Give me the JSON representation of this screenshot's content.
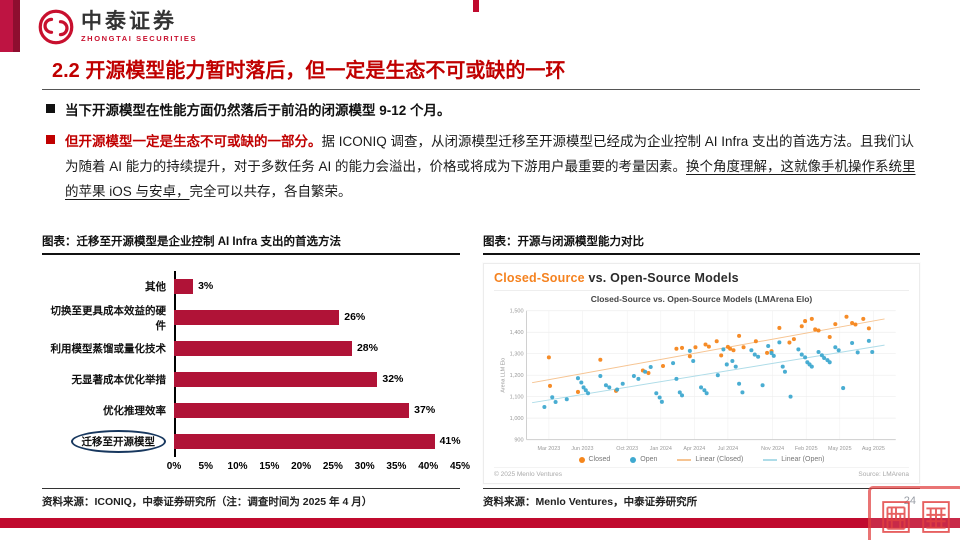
{
  "brand": {
    "name_cn": "中泰证券",
    "name_en": "ZHONGTAI SECURITIES"
  },
  "title": "2.2 开源模型能力暂时落后，但一定是生态不可或缺的一环",
  "bullets": {
    "b1": "当下开源模型在性能方面仍然落后于前沿的闭源模型 9-12 个月。",
    "b2_lead": "但开源模型一定是生态不可或缺的一部分。",
    "b2_body": "据 ICONIQ 调查，从闭源模型迁移至开源模型已经成为企业控制 AI Infra 支出的首选方法。且我们认为随着 AI 能力的持续提升，对于多数任务 AI 的能力会溢出，价格或将成为下游用户最重要的考量因素。",
    "b2_underlined": "换个角度理解，这就像手机操作系统里的苹果 iOS 与安卓，",
    "b2_tail": "完全可以共存，各自繁荣。"
  },
  "left_panel": {
    "header": "图表：迁移至开源模型是企业控制 AI Infra 支出的首选方法",
    "source": "资料来源：ICONIQ，中泰证券研究所（注：调查时间为 2025 年 4 月）"
  },
  "right_panel": {
    "header": "图表：开源与闭源模型能力对比",
    "card_title_orange": "Closed-Source",
    "card_title_rest": " vs. Open-Source Models",
    "copyright": "© 2025 Menlo Ventures",
    "chart_source": "Source: LMArena",
    "source": "资料来源：Menlo Ventures，中泰证券研究所"
  },
  "page_number": "24",
  "colors": {
    "crimson": "#B01337",
    "title_red": "#C00000",
    "closed_orange": "#F5861C",
    "open_blue": "#3FA9D0",
    "trend_orange": "#F6C492",
    "trend_blue": "#AEDCE8",
    "bottom_bar": "#C00A2E"
  },
  "chart_data": [
    {
      "type": "bar",
      "orientation": "horizontal",
      "title": "迁移至开源模型是企业控制 AI Infra 支出的首选方法",
      "categories": [
        "其他",
        "切换至更具成本效益的硬件",
        "利用模型蒸馏或量化技术",
        "无显著成本优化举措",
        "优化推理效率",
        "迁移至开源模型"
      ],
      "values": [
        3,
        26,
        28,
        32,
        37,
        41
      ],
      "value_labels": [
        "3%",
        "26%",
        "28%",
        "32%",
        "37%",
        "41%"
      ],
      "highlight": "迁移至开源模型",
      "xlabel": "",
      "ylabel": "",
      "xlim": [
        0,
        45
      ],
      "xticks": [
        "0%",
        "5%",
        "10%",
        "15%",
        "20%",
        "25%",
        "30%",
        "35%",
        "40%",
        "45%"
      ],
      "bar_color": "#B01337"
    },
    {
      "type": "scatter",
      "title": "Closed-Source vs. Open-Source Models (LMArena Elo)",
      "ylabel": "Arena LLM Elo",
      "ylim": [
        900,
        1500
      ],
      "x_domain": [
        0,
        33
      ],
      "yticks": [
        {
          "v": 900,
          "label": "900"
        },
        {
          "v": 1000,
          "label": "1,000"
        },
        {
          "v": 1100,
          "label": "1,100"
        },
        {
          "v": 1200,
          "label": "1,200"
        },
        {
          "v": 1300,
          "label": "1,300"
        },
        {
          "v": 1400,
          "label": "1,400"
        },
        {
          "v": 1500,
          "label": "1,500"
        }
      ],
      "xticks": [
        {
          "m": 2,
          "label": "Mar 2023"
        },
        {
          "m": 5,
          "label": "Jun 2023"
        },
        {
          "m": 9,
          "label": "Oct 2023"
        },
        {
          "m": 12,
          "label": "Jan 2024"
        },
        {
          "m": 15,
          "label": "Apr 2024"
        },
        {
          "m": 18,
          "label": "Jul 2024"
        },
        {
          "m": 22,
          "label": "Nov 2024"
        },
        {
          "m": 25,
          "label": "Feb 2025"
        },
        {
          "m": 28,
          "label": "May 2025"
        },
        {
          "m": 31,
          "label": "Aug 2025"
        }
      ],
      "series": [
        {
          "name": "Closed",
          "color": "#F5861C",
          "points": [
            [
              2,
              1283
            ],
            [
              2.1,
              1150
            ],
            [
              4.6,
              1122
            ],
            [
              6.6,
              1272
            ],
            [
              8,
              1127
            ],
            [
              10.4,
              1222
            ],
            [
              10.9,
              1210
            ],
            [
              12.2,
              1243
            ],
            [
              13.4,
              1323
            ],
            [
              13.9,
              1327
            ],
            [
              14.6,
              1288
            ],
            [
              15.1,
              1330
            ],
            [
              16,
              1343
            ],
            [
              16.3,
              1333
            ],
            [
              17,
              1358
            ],
            [
              17.4,
              1292
            ],
            [
              18,
              1332
            ],
            [
              18.2,
              1323
            ],
            [
              18.5,
              1316
            ],
            [
              19,
              1383
            ],
            [
              19.4,
              1330
            ],
            [
              20.5,
              1358
            ],
            [
              21.5,
              1304
            ],
            [
              21.9,
              1312
            ],
            [
              22.6,
              1420
            ],
            [
              23.5,
              1352
            ],
            [
              23.9,
              1368
            ],
            [
              24.6,
              1428
            ],
            [
              24.9,
              1452
            ],
            [
              25.5,
              1462
            ],
            [
              25.8,
              1413
            ],
            [
              26.1,
              1408
            ],
            [
              27.1,
              1378
            ],
            [
              27.6,
              1438
            ],
            [
              28.6,
              1472
            ],
            [
              29.1,
              1443
            ],
            [
              29.4,
              1436
            ],
            [
              30.1,
              1462
            ],
            [
              30.6,
              1418
            ]
          ]
        },
        {
          "name": "Open",
          "color": "#3FA9D0",
          "points": [
            [
              1.6,
              1052
            ],
            [
              2.3,
              1097
            ],
            [
              2.6,
              1075
            ],
            [
              3.6,
              1088
            ],
            [
              4.6,
              1186
            ],
            [
              4.9,
              1166
            ],
            [
              5.1,
              1143
            ],
            [
              5.3,
              1130
            ],
            [
              5.5,
              1116
            ],
            [
              6.6,
              1196
            ],
            [
              7.1,
              1153
            ],
            [
              7.4,
              1143
            ],
            [
              8.1,
              1133
            ],
            [
              8.6,
              1160
            ],
            [
              9.6,
              1196
            ],
            [
              10,
              1183
            ],
            [
              10.6,
              1216
            ],
            [
              11.1,
              1238
            ],
            [
              11.6,
              1116
            ],
            [
              11.9,
              1096
            ],
            [
              12.1,
              1076
            ],
            [
              13.1,
              1256
            ],
            [
              13.4,
              1183
            ],
            [
              13.7,
              1120
            ],
            [
              13.9,
              1106
            ],
            [
              14.6,
              1313
            ],
            [
              14.9,
              1266
            ],
            [
              15.6,
              1143
            ],
            [
              15.9,
              1130
            ],
            [
              16.1,
              1116
            ],
            [
              17.1,
              1200
            ],
            [
              17.6,
              1320
            ],
            [
              17.9,
              1250
            ],
            [
              18.4,
              1266
            ],
            [
              18.7,
              1240
            ],
            [
              19,
              1160
            ],
            [
              19.3,
              1120
            ],
            [
              20.1,
              1316
            ],
            [
              20.4,
              1296
            ],
            [
              20.7,
              1286
            ],
            [
              21.1,
              1153
            ],
            [
              21.6,
              1336
            ],
            [
              21.9,
              1303
            ],
            [
              22.1,
              1290
            ],
            [
              22.6,
              1353
            ],
            [
              22.9,
              1240
            ],
            [
              23.1,
              1216
            ],
            [
              23.6,
              1100
            ],
            [
              24.3,
              1320
            ],
            [
              24.6,
              1296
            ],
            [
              24.9,
              1283
            ],
            [
              25.1,
              1260
            ],
            [
              25.3,
              1250
            ],
            [
              25.5,
              1240
            ],
            [
              26.1,
              1308
            ],
            [
              26.4,
              1293
            ],
            [
              26.6,
              1280
            ],
            [
              26.9,
              1270
            ],
            [
              27.1,
              1260
            ],
            [
              27.6,
              1330
            ],
            [
              27.9,
              1316
            ],
            [
              28.3,
              1140
            ],
            [
              29.1,
              1350
            ],
            [
              29.6,
              1306
            ],
            [
              30.6,
              1360
            ],
            [
              30.9,
              1308
            ]
          ]
        }
      ],
      "trendlines": [
        {
          "name": "Linear (Closed)",
          "color": "#F6C492",
          "points": [
            [
              0.5,
              1165
            ],
            [
              32,
              1462
            ]
          ]
        },
        {
          "name": "Linear (Open)",
          "color": "#AEDCE8",
          "points": [
            [
              0.5,
              1072
            ],
            [
              32,
              1340
            ]
          ]
        }
      ],
      "legend": [
        {
          "type": "dot",
          "color": "#F5861C",
          "label": "Closed"
        },
        {
          "type": "dot",
          "color": "#3FA9D0",
          "label": "Open"
        },
        {
          "type": "line",
          "color": "#F6C492",
          "label": "Linear (Closed)"
        },
        {
          "type": "line",
          "color": "#AEDCE8",
          "label": "Linear (Open)"
        }
      ],
      "legend_position": "bottom",
      "grid": true
    }
  ]
}
